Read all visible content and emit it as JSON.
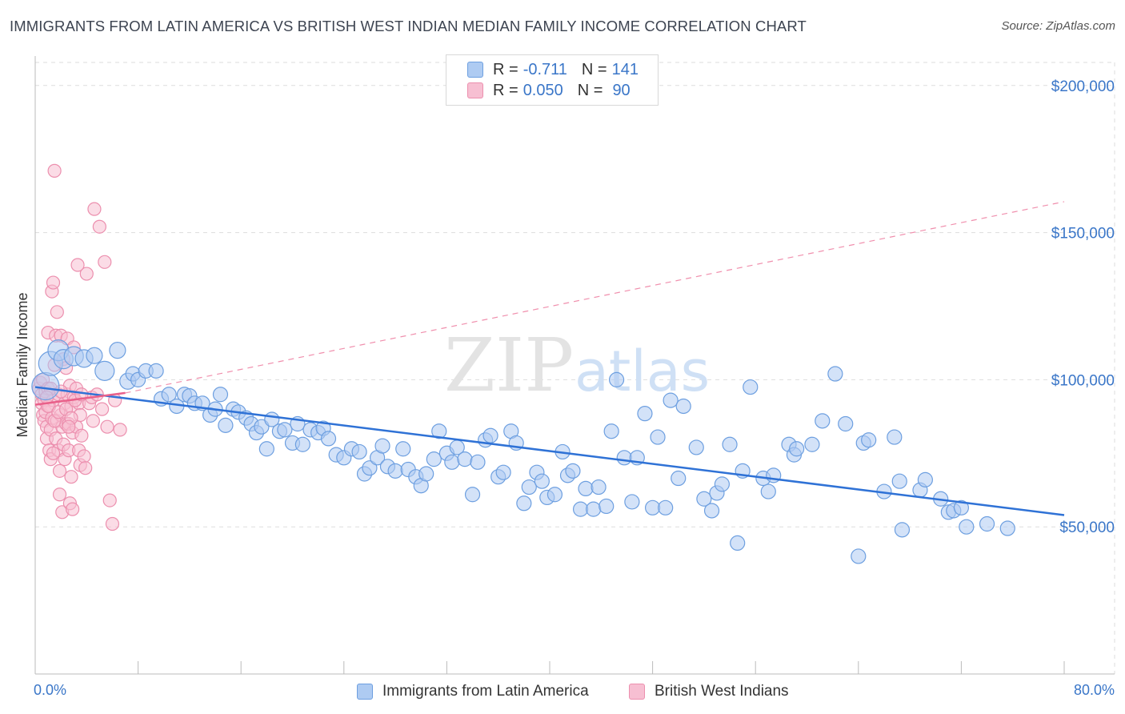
{
  "title": "IMMIGRANTS FROM LATIN AMERICA VS BRITISH WEST INDIAN MEDIAN FAMILY INCOME CORRELATION CHART",
  "source": "Source: ZipAtlas.com",
  "watermark": {
    "zip": "ZIP",
    "atlas": "atlas"
  },
  "colors": {
    "blue_fill": "#aecbf2",
    "blue_stroke": "#6d9fe0",
    "blue_line": "#2f72d6",
    "pink_fill": "#f7bfd2",
    "pink_stroke": "#ec8fae",
    "pink_line": "#e9608a",
    "tick_text": "#3a76c8",
    "grid": "#dddddd"
  },
  "legend": {
    "rows": [
      {
        "r_label": "R =",
        "r_value": "-0.711",
        "n_label": "N =",
        "n_value": "141"
      },
      {
        "r_label": "R =",
        "r_value": "0.050",
        "n_label": "N =",
        "n_value": "90"
      }
    ]
  },
  "bottom_legend": [
    "Immigrants from Latin America",
    "British West Indians"
  ],
  "x_axis": {
    "min_label": "0.0%",
    "max_label": "80.0%"
  },
  "chart_data": {
    "type": "scatter",
    "ylabel": "Median Family Income",
    "xlim": [
      0,
      80
    ],
    "ylim": [
      0,
      210000
    ],
    "y_ticks": [
      {
        "value": 50000,
        "label": "$50,000"
      },
      {
        "value": 100000,
        "label": "$100,000"
      },
      {
        "value": 150000,
        "label": "$150,000"
      },
      {
        "value": 200000,
        "label": "$200,000"
      }
    ],
    "series": [
      {
        "name": "Immigrants from Latin America",
        "trend": {
          "x": [
            0,
            80
          ],
          "y": [
            97500,
            54000
          ],
          "style": "solid"
        },
        "points": [
          [
            0.8,
            97800,
            17
          ],
          [
            1.2,
            105500,
            15
          ],
          [
            1.8,
            110000,
            13
          ],
          [
            2.2,
            107000,
            12
          ],
          [
            3.0,
            108000,
            12
          ],
          [
            3.8,
            107200,
            11
          ],
          [
            4.6,
            108200,
            10
          ],
          [
            5.4,
            103000,
            12
          ],
          [
            6.4,
            110000,
            10
          ],
          [
            7.2,
            99500,
            10
          ],
          [
            7.6,
            102000,
            9
          ],
          [
            8.0,
            100000,
            9
          ],
          [
            8.6,
            103000,
            9
          ],
          [
            9.4,
            103000,
            9
          ],
          [
            9.8,
            93500,
            9
          ],
          [
            10.4,
            95000,
            9
          ],
          [
            11.0,
            91000,
            9
          ],
          [
            11.6,
            95000,
            9
          ],
          [
            12.0,
            94500,
            9
          ],
          [
            12.4,
            92000,
            9
          ],
          [
            13.0,
            92000,
            9
          ],
          [
            13.6,
            88000,
            9
          ],
          [
            14.0,
            90000,
            9
          ],
          [
            14.4,
            95000,
            9
          ],
          [
            14.8,
            84500,
            9
          ],
          [
            15.4,
            90000,
            9
          ],
          [
            15.8,
            89000,
            9
          ],
          [
            16.4,
            87000,
            9
          ],
          [
            16.8,
            85000,
            9
          ],
          [
            17.2,
            82000,
            9
          ],
          [
            17.6,
            84000,
            9
          ],
          [
            18.0,
            76500,
            9
          ],
          [
            18.4,
            86500,
            9
          ],
          [
            19.0,
            82500,
            9
          ],
          [
            19.4,
            83000,
            9
          ],
          [
            20.0,
            78500,
            9
          ],
          [
            20.4,
            85000,
            9
          ],
          [
            20.8,
            78000,
            9
          ],
          [
            21.4,
            83000,
            9
          ],
          [
            22.0,
            82000,
            9
          ],
          [
            22.4,
            83500,
            9
          ],
          [
            22.8,
            80000,
            9
          ],
          [
            23.4,
            74500,
            9
          ],
          [
            24.0,
            73500,
            9
          ],
          [
            24.6,
            76500,
            9
          ],
          [
            25.2,
            75500,
            9
          ],
          [
            25.6,
            68000,
            9
          ],
          [
            26.0,
            70000,
            9
          ],
          [
            26.6,
            73500,
            9
          ],
          [
            27.0,
            77500,
            9
          ],
          [
            27.4,
            70500,
            9
          ],
          [
            28.0,
            69000,
            9
          ],
          [
            28.6,
            76500,
            9
          ],
          [
            29.0,
            69500,
            9
          ],
          [
            29.6,
            67000,
            9
          ],
          [
            30.0,
            64000,
            9
          ],
          [
            30.4,
            68000,
            9
          ],
          [
            31.0,
            73000,
            9
          ],
          [
            31.4,
            82500,
            9
          ],
          [
            32.0,
            75000,
            9
          ],
          [
            32.4,
            72000,
            9
          ],
          [
            32.8,
            77000,
            9
          ],
          [
            33.4,
            73000,
            9
          ],
          [
            34.0,
            61000,
            9
          ],
          [
            34.4,
            72000,
            9
          ],
          [
            35.0,
            79500,
            9
          ],
          [
            35.4,
            81000,
            9
          ],
          [
            36.0,
            67000,
            9
          ],
          [
            36.4,
            68500,
            9
          ],
          [
            37.0,
            82500,
            9
          ],
          [
            37.4,
            78500,
            9
          ],
          [
            38.0,
            58000,
            9
          ],
          [
            38.4,
            63500,
            9
          ],
          [
            39.0,
            68500,
            9
          ],
          [
            39.4,
            65500,
            9
          ],
          [
            39.8,
            60000,
            9
          ],
          [
            40.4,
            61000,
            9
          ],
          [
            41.0,
            75500,
            9
          ],
          [
            41.4,
            67500,
            9
          ],
          [
            41.8,
            69000,
            9
          ],
          [
            42.4,
            56000,
            9
          ],
          [
            42.8,
            63000,
            9
          ],
          [
            43.4,
            56000,
            9
          ],
          [
            43.8,
            63500,
            9
          ],
          [
            44.4,
            57000,
            9
          ],
          [
            44.8,
            82500,
            9
          ],
          [
            45.2,
            100000,
            9
          ],
          [
            45.8,
            73500,
            9
          ],
          [
            46.4,
            58500,
            9
          ],
          [
            46.8,
            73500,
            9
          ],
          [
            47.4,
            88500,
            9
          ],
          [
            48.0,
            56500,
            9
          ],
          [
            48.4,
            80500,
            9
          ],
          [
            49.0,
            56500,
            9
          ],
          [
            49.4,
            93000,
            9
          ],
          [
            50.0,
            66500,
            9
          ],
          [
            50.4,
            91000,
            9
          ],
          [
            51.4,
            77000,
            9
          ],
          [
            52.0,
            59500,
            9
          ],
          [
            52.6,
            55500,
            9
          ],
          [
            53.0,
            61500,
            9
          ],
          [
            53.4,
            64500,
            9
          ],
          [
            54.0,
            78000,
            9
          ],
          [
            54.6,
            44500,
            9
          ],
          [
            55.0,
            69000,
            9
          ],
          [
            55.6,
            97500,
            9
          ],
          [
            56.6,
            66500,
            9
          ],
          [
            57.0,
            62000,
            9
          ],
          [
            57.4,
            67500,
            9
          ],
          [
            58.6,
            78000,
            9
          ],
          [
            59.0,
            74500,
            9
          ],
          [
            59.2,
            76500,
            9
          ],
          [
            60.4,
            78000,
            9
          ],
          [
            61.2,
            86000,
            9
          ],
          [
            62.2,
            102000,
            9
          ],
          [
            63.0,
            85000,
            9
          ],
          [
            64.0,
            40000,
            9
          ],
          [
            64.4,
            78500,
            9
          ],
          [
            64.8,
            79500,
            9
          ],
          [
            66.0,
            62000,
            9
          ],
          [
            66.8,
            80500,
            9
          ],
          [
            67.2,
            65500,
            9
          ],
          [
            67.4,
            49000,
            9
          ],
          [
            68.8,
            62500,
            9
          ],
          [
            69.2,
            66000,
            9
          ],
          [
            70.4,
            59500,
            9
          ],
          [
            71.0,
            55000,
            9
          ],
          [
            71.4,
            55500,
            9
          ],
          [
            72.0,
            56500,
            9
          ],
          [
            72.4,
            50000,
            9
          ],
          [
            74.0,
            51000,
            9
          ],
          [
            75.6,
            49500,
            9
          ]
        ]
      },
      {
        "name": "British West Indians",
        "trend": {
          "x": [
            0,
            7
          ],
          "y": [
            91500,
            95500
          ],
          "style": "solid",
          "extension": {
            "x": [
              7,
              80
            ],
            "y": [
              95500,
              160500
            ],
            "style": "dashed"
          }
        },
        "points": [
          [
            0.3,
            97000
          ],
          [
            0.4,
            99000
          ],
          [
            0.5,
            95000
          ],
          [
            0.5,
            92000
          ],
          [
            0.6,
            100000
          ],
          [
            0.6,
            88000
          ],
          [
            0.7,
            93000
          ],
          [
            0.7,
            86000
          ],
          [
            0.8,
            96000
          ],
          [
            0.8,
            89000
          ],
          [
            0.9,
            84000
          ],
          [
            0.9,
            80000
          ],
          [
            1.0,
            116000
          ],
          [
            1.0,
            97000
          ],
          [
            1.1,
            91000
          ],
          [
            1.1,
            76000
          ],
          [
            1.2,
            83000
          ],
          [
            1.2,
            73000
          ],
          [
            1.3,
            130000
          ],
          [
            1.3,
            87000
          ],
          [
            1.4,
            133000
          ],
          [
            1.4,
            93000
          ],
          [
            1.5,
            171000
          ],
          [
            1.5,
            105000
          ],
          [
            1.6,
            115000
          ],
          [
            1.6,
            80000
          ],
          [
            1.7,
            123000
          ],
          [
            1.7,
            86000
          ],
          [
            1.8,
            95000
          ],
          [
            1.8,
            76000
          ],
          [
            1.9,
            69000
          ],
          [
            1.9,
            61000
          ],
          [
            2.0,
            115000
          ],
          [
            2.0,
            88000
          ],
          [
            2.1,
            84000
          ],
          [
            2.1,
            55000
          ],
          [
            2.2,
            107000
          ],
          [
            2.2,
            78000
          ],
          [
            2.3,
            92000
          ],
          [
            2.3,
            73000
          ],
          [
            2.4,
            104000
          ],
          [
            2.4,
            85000
          ],
          [
            2.5,
            114000
          ],
          [
            2.5,
            95000
          ],
          [
            2.6,
            85000
          ],
          [
            2.6,
            76000
          ],
          [
            2.7,
            98000
          ],
          [
            2.7,
            58000
          ],
          [
            2.8,
            91000
          ],
          [
            2.8,
            67000
          ],
          [
            2.9,
            82000
          ],
          [
            2.9,
            56000
          ],
          [
            3.0,
            111000
          ],
          [
            3.0,
            94000
          ],
          [
            3.2,
            97000
          ],
          [
            3.2,
            84000
          ],
          [
            3.4,
            92000
          ],
          [
            3.4,
            76000
          ],
          [
            3.5,
            88000
          ],
          [
            3.5,
            71000
          ],
          [
            3.6,
            81000
          ],
          [
            3.8,
            74000
          ],
          [
            3.9,
            70000
          ],
          [
            4.0,
            136000
          ],
          [
            4.2,
            92000
          ],
          [
            4.4,
            94000
          ],
          [
            4.5,
            86000
          ],
          [
            4.6,
            158000
          ],
          [
            4.8,
            95000
          ],
          [
            5.0,
            152000
          ],
          [
            5.2,
            90000
          ],
          [
            5.4,
            140000
          ],
          [
            5.6,
            84000
          ],
          [
            5.8,
            59000
          ],
          [
            6.0,
            51000
          ],
          [
            6.2,
            93000
          ],
          [
            6.6,
            83000
          ],
          [
            1.0,
            91000
          ],
          [
            1.2,
            97000
          ],
          [
            1.5,
            86000
          ],
          [
            1.8,
            89000
          ],
          [
            2.0,
            96000
          ],
          [
            2.4,
            90000
          ],
          [
            2.8,
            87000
          ],
          [
            3.1,
            93000
          ],
          [
            3.6,
            95000
          ],
          [
            3.3,
            139000
          ],
          [
            1.4,
            75000
          ],
          [
            2.6,
            84000
          ],
          [
            0.9,
            94000
          ]
        ]
      }
    ],
    "grid": true,
    "legend_position": "top-center"
  }
}
